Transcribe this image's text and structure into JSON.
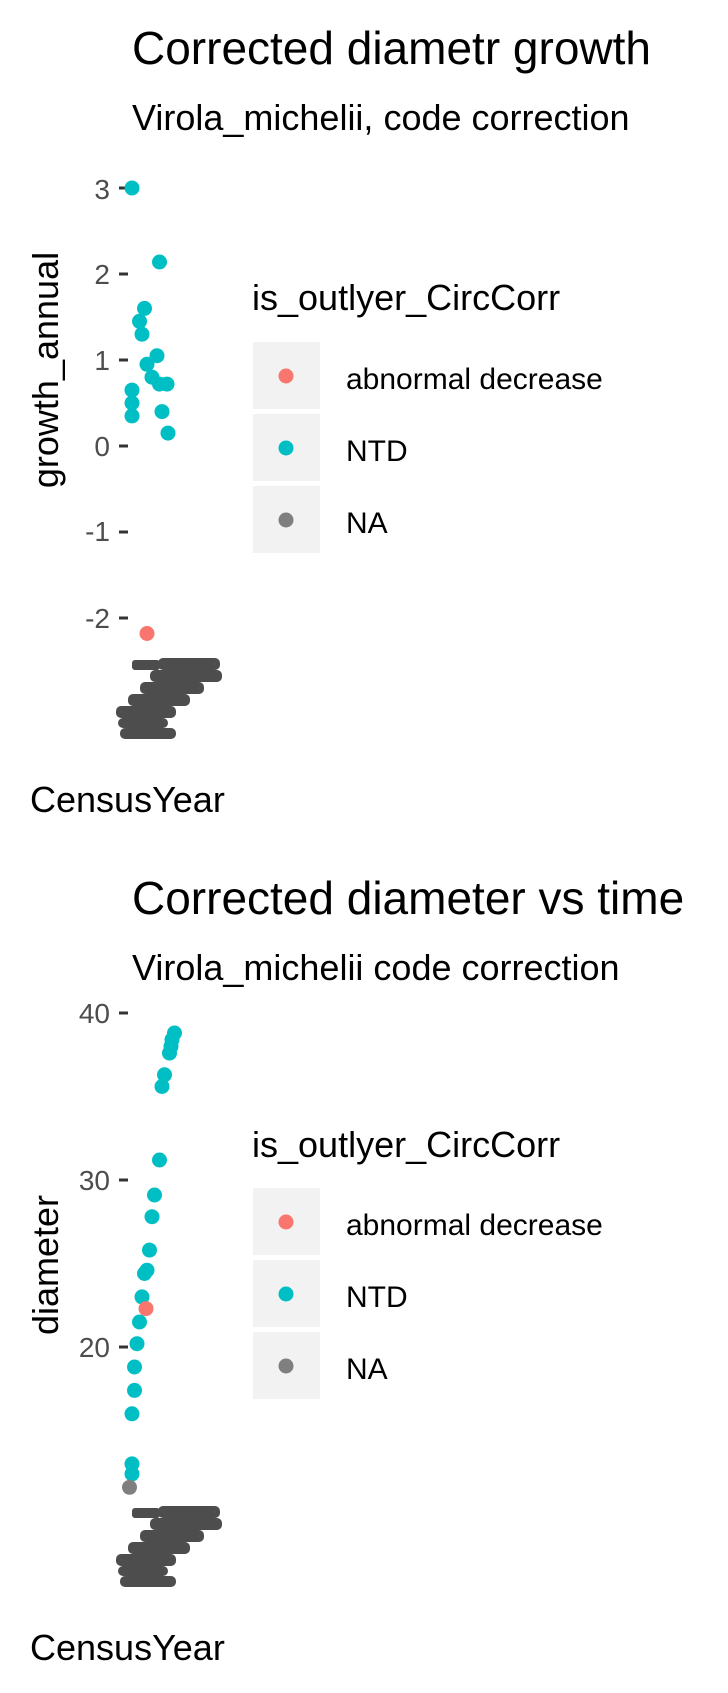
{
  "colors": {
    "abnormal_decrease": "#F8766D",
    "NTD": "#00BFC4",
    "NA": "#7F7F7F",
    "tick_text": "#4d4d4d",
    "legend_key_bg": "#F2F2F2",
    "overlap_text": "#4d4d4d"
  },
  "chart_data": [
    {
      "type": "scatter",
      "title": "Corrected diametr growth",
      "subtitle": "Virola_michelii, code correction",
      "xlabel": "CensusYear",
      "ylabel": "growth_annual",
      "y_ticks": [
        "3",
        "2",
        "1",
        "0",
        "-1",
        "-2"
      ],
      "ylim": [
        -2.1,
        3.0
      ],
      "legend": {
        "title": "is_outlyer_CircCorr",
        "entries": [
          "abnormal decrease",
          "NTD",
          "NA"
        ]
      },
      "series": [
        {
          "name": "NTD",
          "color_key": "NTD",
          "points": [
            {
              "x": 0.0,
              "y": 3.0
            },
            {
              "x": 0.55,
              "y": 2.14
            },
            {
              "x": 0.25,
              "y": 1.6
            },
            {
              "x": 0.15,
              "y": 1.45
            },
            {
              "x": 0.2,
              "y": 1.3
            },
            {
              "x": 0.5,
              "y": 1.05
            },
            {
              "x": 0.3,
              "y": 0.95
            },
            {
              "x": 0.4,
              "y": 0.8
            },
            {
              "x": 0.55,
              "y": 0.72
            },
            {
              "x": 0.7,
              "y": 0.72
            },
            {
              "x": 0.0,
              "y": 0.65
            },
            {
              "x": 0.0,
              "y": 0.5
            },
            {
              "x": 0.0,
              "y": 0.35
            },
            {
              "x": 0.6,
              "y": 0.4
            },
            {
              "x": 0.72,
              "y": 0.15
            }
          ]
        },
        {
          "name": "abnormal decrease",
          "color_key": "abnormal_decrease",
          "points": [
            {
              "x": 0.3,
              "y": -2.18
            }
          ]
        }
      ]
    },
    {
      "type": "scatter",
      "title": "Corrected diameter vs time",
      "subtitle": "Virola_michelii code correction",
      "xlabel": "CensusYear",
      "ylabel": "diameter",
      "y_ticks": [
        "40",
        "30",
        "20"
      ],
      "ylim": [
        12.4,
        40
      ],
      "legend": {
        "title": "is_outlyer_CircCorr",
        "entries": [
          "abnormal decrease",
          "NTD",
          "NA"
        ]
      },
      "series": [
        {
          "name": "NTD",
          "color_key": "NTD",
          "points": [
            {
              "x": 0.85,
              "y": 38.8
            },
            {
              "x": 0.8,
              "y": 38.4
            },
            {
              "x": 0.78,
              "y": 38.0
            },
            {
              "x": 0.75,
              "y": 37.6
            },
            {
              "x": 0.65,
              "y": 36.3
            },
            {
              "x": 0.6,
              "y": 35.6
            },
            {
              "x": 0.55,
              "y": 31.2
            },
            {
              "x": 0.45,
              "y": 29.1
            },
            {
              "x": 0.4,
              "y": 27.8
            },
            {
              "x": 0.35,
              "y": 25.8
            },
            {
              "x": 0.3,
              "y": 24.6
            },
            {
              "x": 0.25,
              "y": 24.4
            },
            {
              "x": 0.2,
              "y": 23.0
            },
            {
              "x": 0.15,
              "y": 21.5
            },
            {
              "x": 0.1,
              "y": 20.2
            },
            {
              "x": 0.05,
              "y": 18.8
            },
            {
              "x": 0.05,
              "y": 17.4
            },
            {
              "x": 0.0,
              "y": 16.0
            },
            {
              "x": 0.0,
              "y": 13.0
            },
            {
              "x": 0.0,
              "y": 12.4
            }
          ]
        },
        {
          "name": "abnormal decrease",
          "color_key": "abnormal_decrease",
          "points": [
            {
              "x": 0.28,
              "y": 22.3
            }
          ]
        },
        {
          "name": "NA",
          "color_key": "NA",
          "points": [
            {
              "x": -0.05,
              "y": 11.6
            }
          ]
        }
      ]
    }
  ]
}
